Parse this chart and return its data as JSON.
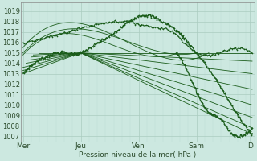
{
  "bg_color": "#cce8e0",
  "grid_major_color": "#aaccc0",
  "grid_minor_color": "#bbddd5",
  "line_color": "#1a5c1a",
  "ylabel_ticks": [
    1007,
    1008,
    1009,
    1010,
    1011,
    1012,
    1013,
    1014,
    1015,
    1016,
    1017,
    1018,
    1019
  ],
  "x_day_labels": [
    "Mer",
    "Jeu",
    "Ven",
    "Sam",
    "D"
  ],
  "x_day_positions": [
    0,
    56,
    112,
    168,
    220
  ],
  "xlabel": "Pression niveau de la mer( hPa )",
  "ylim": [
    1006.5,
    1019.8
  ],
  "xlim": [
    -2,
    224
  ]
}
